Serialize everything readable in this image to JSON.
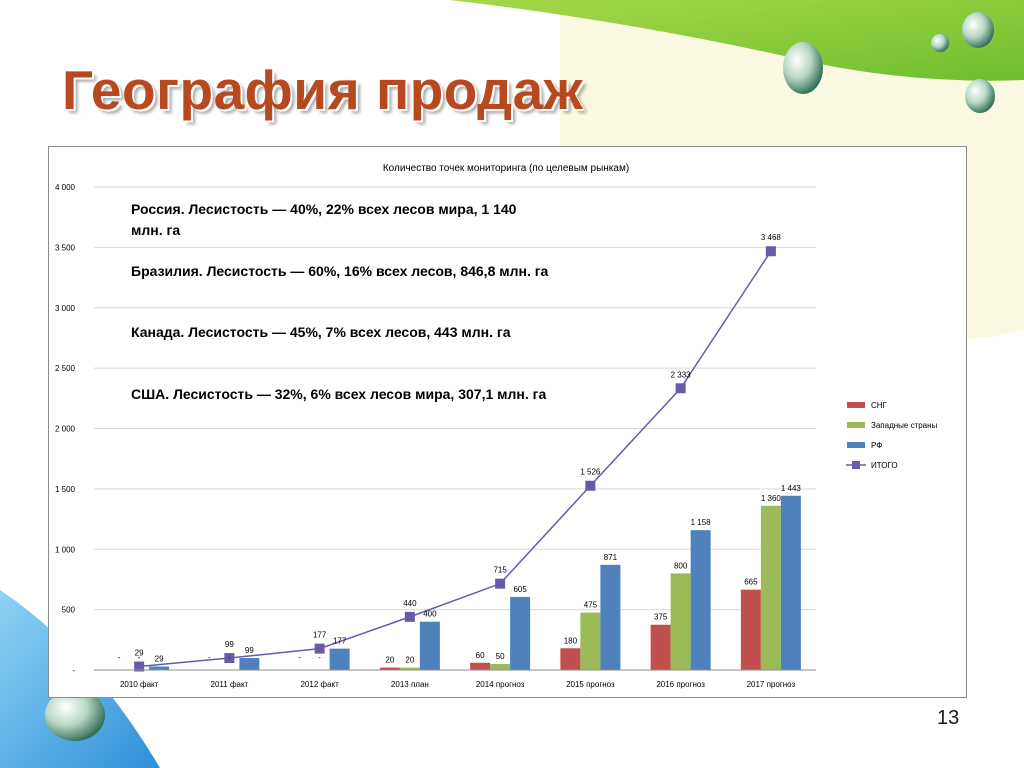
{
  "slide": {
    "title": "География продаж",
    "page_number": "13"
  },
  "colors": {
    "title": "#b8491e",
    "sng": "#c0504d",
    "western": "#9bbb59",
    "rf": "#4f81bd",
    "total": "#6a5aa5"
  },
  "annotations": [
    "Россия. Лесистость — 40%, 22% всех лесов мира, 1 140 млн. га",
    "Бразилия. Лесистость — 60%, 16% всех лесов, 846,8 млн. га",
    "Канада. Лесистость — 45%, 7% всех лесов, 443 млн. га",
    "США. Лесистость — 32%, 6% всех лесов мира, 307,1 млн. га"
  ],
  "chart_data": {
    "type": "bar",
    "title": "Количество точек мониторинга (по целевым рынкам)",
    "categories": [
      "2010 факт",
      "2011 факт",
      "2012 факт",
      "2013 план",
      "2014 прогноз",
      "2015 прогноз",
      "2016 прогноз",
      "2017 прогноз"
    ],
    "ylim": [
      0,
      4000
    ],
    "yticks": [
      0,
      500,
      1000,
      1500,
      2000,
      2500,
      3000,
      3500,
      4000
    ],
    "ytick_labels": [
      "-",
      "500",
      "1 000",
      "1 500",
      "2 000",
      "2 500",
      "3 000",
      "3 500",
      "4 000"
    ],
    "grid": true,
    "legend_position": "right",
    "series": [
      {
        "name": "СНГ",
        "type": "bar",
        "color": "#c0504d",
        "values": [
          0,
          0,
          0,
          20,
          60,
          180,
          375,
          665
        ],
        "labels": [
          "-",
          "-",
          "-",
          "20",
          "60",
          "180",
          "375",
          "665"
        ]
      },
      {
        "name": "Западные страны",
        "type": "bar",
        "color": "#9bbb59",
        "values": [
          0,
          0,
          0,
          20,
          50,
          475,
          800,
          1360
        ],
        "labels": [
          "-",
          "-",
          "-",
          "20",
          "50",
          "475",
          "800",
          "1 360"
        ]
      },
      {
        "name": "РФ",
        "type": "bar",
        "color": "#4f81bd",
        "values": [
          29,
          99,
          177,
          400,
          605,
          871,
          1158,
          1443
        ],
        "labels": [
          "29",
          "99",
          "177",
          "400",
          "605",
          "871",
          "1 158",
          "1 443"
        ]
      },
      {
        "name": "ИТОГО",
        "type": "line",
        "color": "#6a5aa5",
        "values": [
          29,
          99,
          177,
          440,
          715,
          1526,
          2333,
          3468
        ],
        "labels": [
          "29",
          "99",
          "177",
          "440",
          "715",
          "1 526",
          "2 333",
          "3 468"
        ]
      }
    ]
  }
}
